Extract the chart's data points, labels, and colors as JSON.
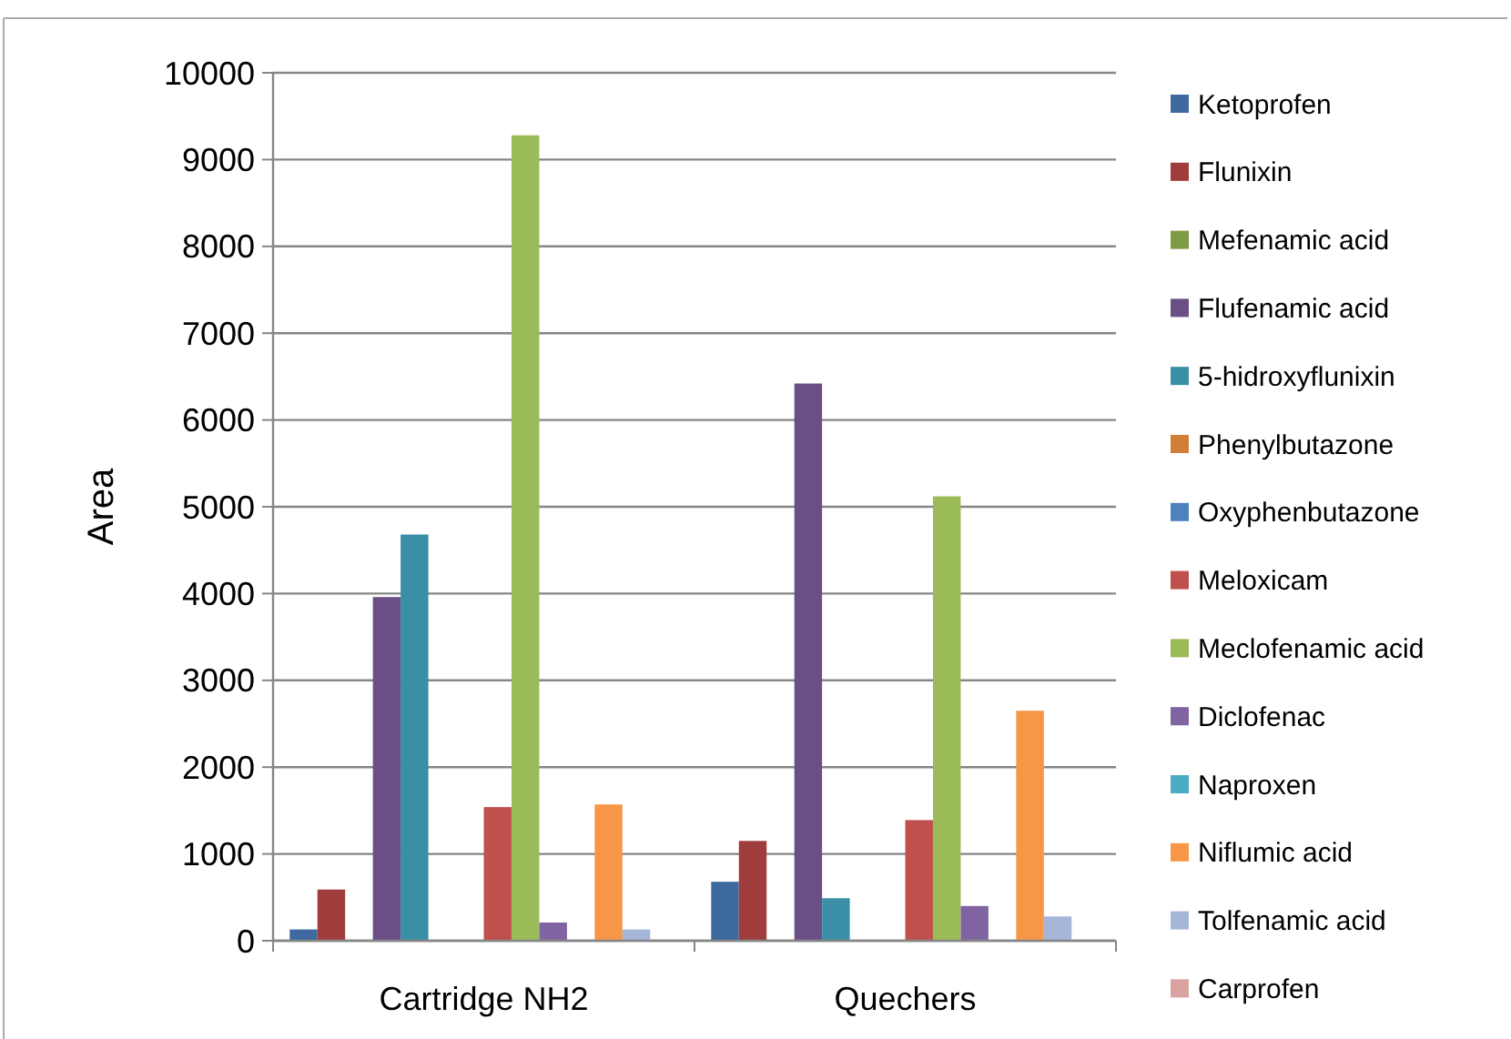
{
  "chart_data": {
    "type": "bar",
    "ylabel": "Area",
    "categories": [
      "Cartridge NH2",
      "Quechers"
    ],
    "series": [
      {
        "name": "Ketoprofen",
        "color": "#3e6aa0",
        "values": [
          130,
          680
        ]
      },
      {
        "name": "Flunixin",
        "color": "#9e3d3b",
        "values": [
          590,
          1150
        ]
      },
      {
        "name": "Mefenamic acid",
        "color": "#7f9a45",
        "values": [
          0,
          0
        ]
      },
      {
        "name": "Flufenamic acid",
        "color": "#6a4f86",
        "values": [
          3960,
          6420
        ]
      },
      {
        "name": "5-hidroxyflunixin",
        "color": "#3a8ea6",
        "values": [
          4680,
          490
        ]
      },
      {
        "name": "Phenylbutazone",
        "color": "#d07f37",
        "values": [
          0,
          0
        ]
      },
      {
        "name": "Oxyphenbutazone",
        "color": "#4f81bd",
        "values": [
          0,
          0
        ]
      },
      {
        "name": "Meloxicam",
        "color": "#c0504d",
        "values": [
          1540,
          1390
        ]
      },
      {
        "name": "Meclofenamic acid",
        "color": "#9bbb59",
        "values": [
          9280,
          5120
        ]
      },
      {
        "name": "Diclofenac",
        "color": "#8064a2",
        "values": [
          210,
          400
        ]
      },
      {
        "name": "Naproxen",
        "color": "#4bacc6",
        "values": [
          0,
          0
        ]
      },
      {
        "name": "Niflumic acid",
        "color": "#f79646",
        "values": [
          1570,
          2650
        ]
      },
      {
        "name": "Tolfenamic acid",
        "color": "#a5b6d9",
        "values": [
          130,
          280
        ]
      },
      {
        "name": "Carprofen",
        "color": "#d9a3a2",
        "values": [
          0,
          0
        ]
      }
    ],
    "ylim": [
      0,
      10000
    ],
    "yticks": [
      0,
      1000,
      2000,
      3000,
      4000,
      5000,
      6000,
      7000,
      8000,
      9000,
      10000
    ],
    "grid": "y",
    "legend": "right"
  }
}
